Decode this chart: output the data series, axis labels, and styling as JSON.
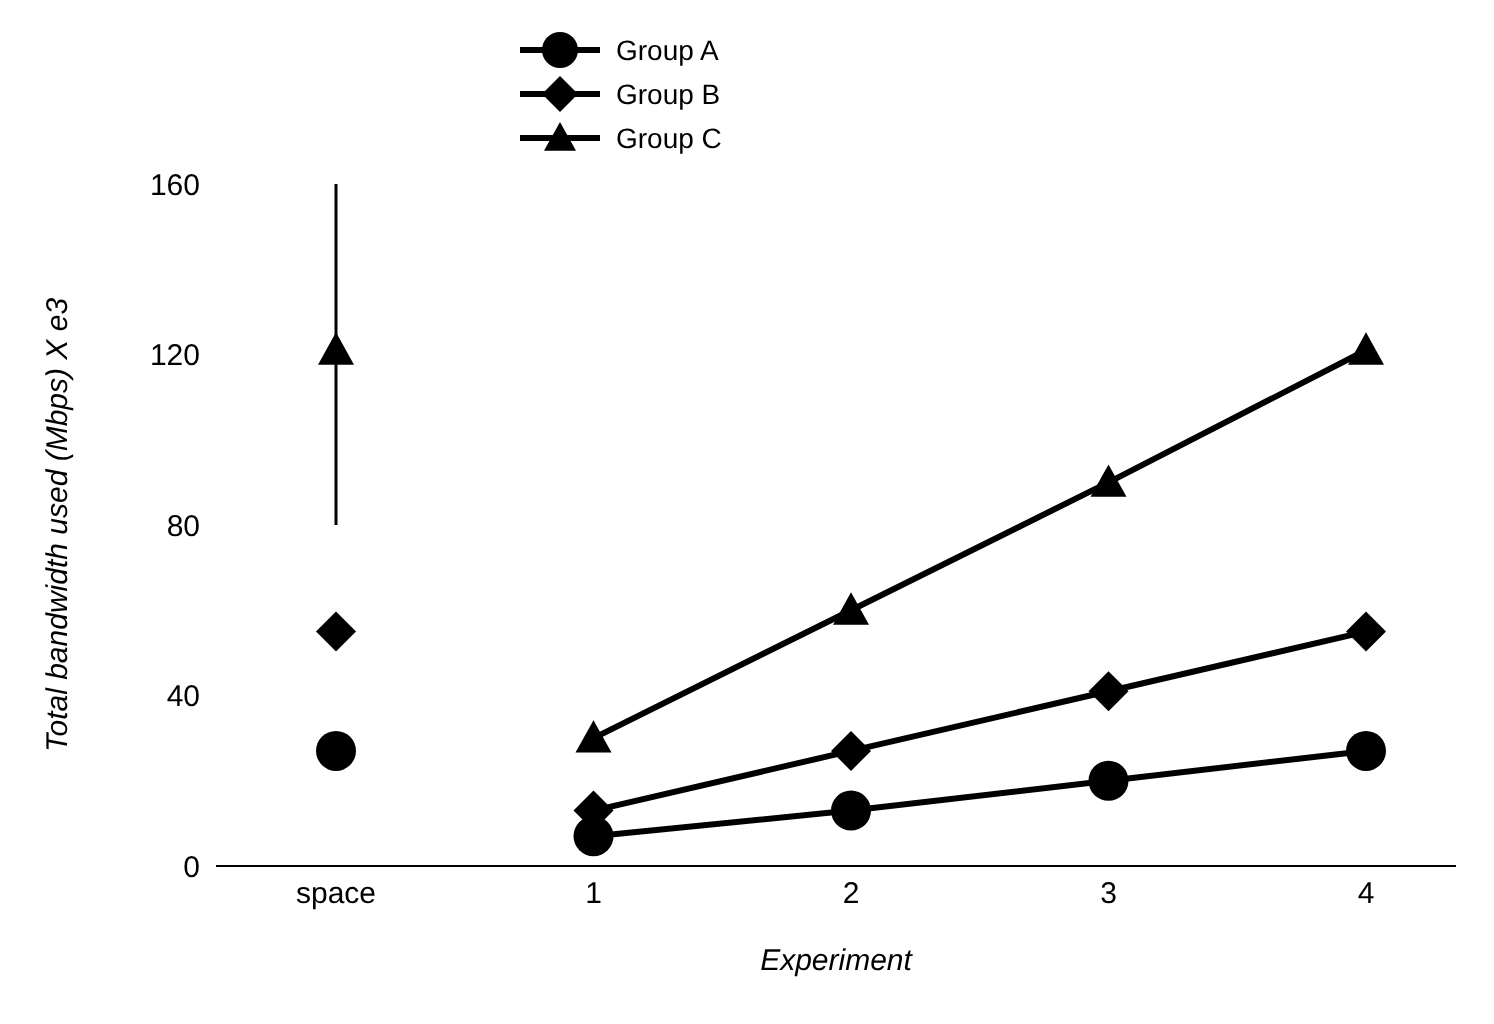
{
  "chart_data": {
    "type": "line",
    "xlabel": "Experiment",
    "ylabel": "Total bandwidth used (Mbps) X e3",
    "categories": [
      "space",
      "1",
      "2",
      "3",
      "4"
    ],
    "series": [
      {
        "name": "Group A",
        "color": "#000000",
        "marker": "circle",
        "values": [
          null,
          7,
          13,
          20,
          27
        ]
      },
      {
        "name": "Group B",
        "color": "#000000",
        "marker": "diamond",
        "values": [
          null,
          13,
          27,
          41,
          55
        ]
      },
      {
        "name": "Group C",
        "color": "#000000",
        "marker": "triangle",
        "values": [
          null,
          30,
          60,
          90,
          121
        ]
      },
      {
        "type": "scatter",
        "color": "#000000",
        "marker": "circle",
        "values": [
          27,
          null,
          null,
          null,
          null
        ]
      },
      {
        "type": "scatter",
        "color": "#000000",
        "marker": "diamond",
        "values": [
          55,
          null,
          null,
          null,
          null
        ]
      },
      {
        "type": "scatter",
        "color": "#000000",
        "marker": "triangle",
        "values": [
          121,
          null,
          null,
          null,
          null
        ],
        "errors": [
          [
            80,
            160
          ],
          null,
          null,
          null,
          null
        ]
      }
    ],
    "ylim": [
      0,
      160
    ],
    "yticks": [
      0,
      40,
      80,
      120,
      160
    ],
    "grid": false,
    "legend": "top",
    "line_style": "solid"
  }
}
